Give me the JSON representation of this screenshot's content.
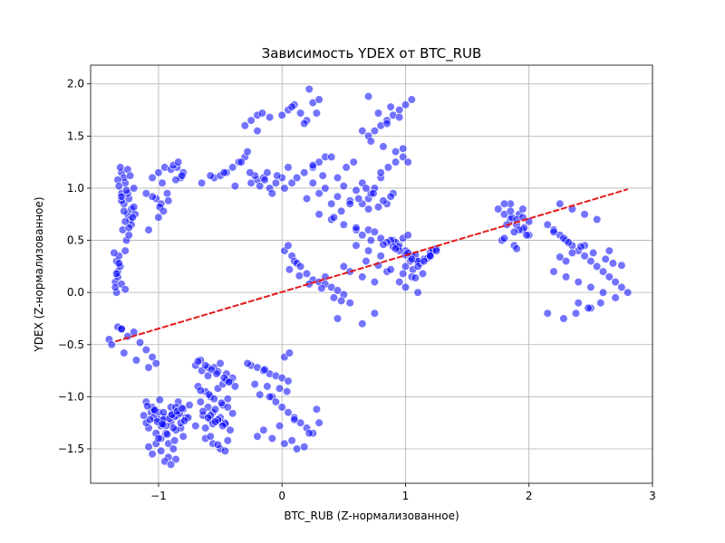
{
  "chart_data": {
    "type": "scatter",
    "title": "Зависимость YDEX от BTC_RUB",
    "xlabel": "BTC_RUB (Z-нормализованное)",
    "ylabel": "YDEX (Z-нормализованное)",
    "xlim": [
      -1.55,
      3.0
    ],
    "ylim": [
      -1.83,
      2.18
    ],
    "x_ticks": [
      -1,
      0,
      1,
      2,
      3
    ],
    "x_tick_labels": [
      "−1",
      "0",
      "1",
      "2",
      "3"
    ],
    "y_ticks": [
      -1.5,
      -1.0,
      -0.5,
      0.0,
      0.5,
      1.0,
      1.5,
      2.0
    ],
    "y_tick_labels": [
      "−1.5",
      "−1.0",
      "−0.5",
      "0.0",
      "0.5",
      "1.0",
      "1.5",
      "2.0"
    ],
    "grid": true,
    "colors": {
      "points": "#0000ff",
      "regression": "#e41a1c"
    },
    "regression_line": {
      "x": [
        -1.35,
        2.8
      ],
      "y": [
        -0.47,
        0.99
      ],
      "style": "dashed"
    },
    "series": [
      {
        "x": [
          -1.3,
          -1.28,
          -1.25,
          -1.3,
          -1.27,
          -1.24,
          -1.22,
          -1.29,
          -1.26,
          -1.23,
          -1.2,
          -1.31,
          -1.28,
          -1.25,
          -1.22,
          -1.19,
          -1.27,
          -1.24,
          -1.3,
          -1.26,
          -1.21,
          -1.33,
          -1.28,
          -1.24,
          -1.2,
          -1.25,
          -1.27,
          -1.3,
          -1.23,
          -1.32,
          -1.34,
          -1.33,
          -1.35,
          -1.32,
          -1.34,
          -1.31,
          -1.33,
          -1.35,
          -1.32,
          -1.34,
          -1.3,
          -1.27,
          -1.33,
          -1.3,
          -1.36,
          -1.05,
          -1.0,
          -0.95,
          -0.9,
          -1.02,
          -0.98,
          -0.93,
          -1.08,
          -1.05,
          -0.97,
          -0.85,
          -0.82,
          -0.8,
          -0.88,
          -0.84,
          -0.81,
          -0.86,
          -0.92,
          -0.99,
          -0.96,
          -1.1,
          -1.0,
          -0.65,
          -0.55,
          -0.5,
          -0.45,
          -0.4,
          -0.35,
          -0.3,
          -0.28,
          -0.25,
          -0.2,
          -0.15,
          -0.12,
          -0.1,
          -0.05,
          0.0,
          0.05,
          -0.22,
          -0.18,
          -0.08,
          -0.33,
          -0.38,
          -0.26,
          -0.14,
          -0.04,
          0.02,
          0.08,
          0.12,
          0.18,
          0.25,
          0.3,
          -0.47,
          -0.58,
          -0.3,
          -0.25,
          -0.2,
          -0.16,
          -0.1,
          0.0,
          0.05,
          0.1,
          0.15,
          0.2,
          0.25,
          0.3,
          -0.2,
          0.22,
          0.28,
          0.18,
          0.08,
          0.2,
          0.3,
          0.35,
          0.4,
          0.45,
          0.5,
          0.55,
          0.6,
          0.65,
          0.7,
          0.75,
          0.8,
          0.85,
          0.9,
          0.3,
          0.4,
          0.5,
          0.6,
          0.65,
          0.7,
          0.72,
          0.78,
          0.82,
          0.88,
          0.25,
          0.33,
          0.42,
          0.48,
          0.55,
          0.62,
          0.68,
          0.74,
          0.8,
          0.86,
          0.92,
          0.35,
          0.45,
          0.52,
          0.58,
          0.25,
          0.4,
          0.6,
          0.7,
          0.75,
          0.8,
          0.85,
          0.9,
          0.95,
          1.0,
          1.05,
          0.72,
          0.82,
          0.92,
          0.98,
          1.02,
          0.65,
          0.85,
          0.95,
          0.78,
          0.88,
          0.98,
          0.7,
          0.9,
          0.95,
          1.0,
          1.05,
          1.1,
          1.15,
          1.2,
          1.25,
          0.92,
          0.98,
          1.02,
          1.08,
          1.12,
          1.18,
          1.22,
          0.88,
          0.94,
          1.04,
          1.06,
          1.14,
          0.6,
          0.7,
          0.8,
          0.55,
          0.5,
          0.65,
          0.75,
          1.0,
          1.1,
          1.2,
          0.85,
          0.95,
          1.0,
          1.05,
          1.1,
          1.15,
          1.2,
          1.1,
          1.25,
          0.75,
          0.65,
          0.45,
          0.55,
          0.35,
          1.75,
          1.8,
          1.85,
          1.9,
          1.95,
          2.0,
          1.78,
          1.88,
          1.98,
          1.82,
          1.92,
          1.86,
          1.96,
          1.8,
          1.9,
          1.85,
          1.95,
          1.9,
          1.8,
          1.85,
          1.95,
          2.0,
          1.92,
          1.88,
          2.15,
          2.2,
          2.25,
          2.3,
          2.35,
          2.4,
          2.45,
          2.5,
          2.55,
          2.6,
          2.65,
          2.7,
          2.75,
          2.8,
          2.2,
          2.3,
          2.4,
          2.5,
          2.6,
          2.7,
          2.25,
          2.35,
          2.45,
          2.55,
          2.65,
          2.3,
          2.4,
          2.5,
          2.15,
          2.28,
          2.38,
          2.48,
          2.58,
          2.45,
          2.35,
          2.25,
          2.2,
          2.28,
          2.32,
          2.42,
          2.52,
          2.62,
          2.68,
          2.75,
          -1.1,
          -1.05,
          -1.0,
          -0.95,
          -0.9,
          -0.85,
          -0.8,
          -0.75,
          -1.08,
          -1.02,
          -0.98,
          -0.92,
          -0.88,
          -0.82,
          -0.78,
          -1.06,
          -1.0,
          -0.94,
          -0.86,
          -0.8,
          -1.1,
          -1.04,
          -0.96,
          -0.9,
          -0.84,
          -0.76,
          -1.02,
          -0.98,
          -0.92,
          -0.86,
          -1.08,
          -1.0,
          -0.94,
          -0.88,
          -0.82,
          -0.96,
          -0.9,
          -1.04,
          -0.86,
          -0.98,
          -1.12,
          -1.07,
          -1.01,
          -0.96,
          -0.91,
          -0.87,
          -0.83,
          -0.79,
          -1.03,
          -0.97,
          -0.89,
          -0.85,
          -0.81,
          -1.09,
          -0.99,
          -0.93,
          -0.87,
          -1.05,
          -0.95,
          -0.9,
          -0.7,
          -0.65,
          -0.6,
          -0.55,
          -0.5,
          -0.45,
          -0.4,
          -0.68,
          -0.62,
          -0.58,
          -0.52,
          -0.48,
          -0.42,
          -0.66,
          -0.6,
          -0.56,
          -0.5,
          -0.46,
          -0.64,
          -0.58,
          -0.54,
          -0.48,
          -0.44,
          -0.7,
          -0.62,
          -0.56,
          -0.5,
          -0.66,
          -0.6,
          -0.52,
          -0.45,
          -0.68,
          -0.62,
          -0.57,
          -0.53,
          -0.47,
          -0.43,
          -0.38,
          -0.66,
          -0.59,
          -0.55,
          -0.49,
          -0.44,
          -0.64,
          -0.58,
          -0.52,
          -0.46,
          -0.4,
          -0.6,
          -0.54,
          -0.48,
          -0.42,
          -0.62,
          -0.56,
          -0.5,
          -0.44,
          -0.58,
          -0.52,
          -0.46,
          -0.25,
          -0.2,
          -0.15,
          -0.1,
          -0.05,
          0.0,
          0.05,
          -0.22,
          -0.12,
          -0.02,
          0.04,
          -0.18,
          -0.08,
          0.02,
          -0.28,
          -0.14,
          0.06,
          -0.1,
          -0.05,
          0.0,
          0.05,
          0.1,
          0.15,
          0.2,
          0.25,
          -0.08,
          0.02,
          0.12,
          0.22,
          0.3,
          -0.15,
          -0.2,
          0.08,
          0.18,
          -0.02,
          0.1,
          0.28,
          -1.4,
          -1.3,
          -1.25,
          -1.2,
          -1.15,
          -1.1,
          -1.05,
          -1.02,
          -1.38,
          -1.28,
          -1.18,
          -1.08,
          0.02,
          0.05,
          0.08,
          0.1,
          0.12,
          0.15,
          0.2,
          0.25,
          0.3,
          0.35,
          0.4,
          0.45,
          0.5,
          0.06,
          0.14,
          0.22,
          0.32,
          0.42,
          0.48,
          0.65,
          0.7,
          0.75,
          0.8,
          0.85,
          0.9,
          0.95,
          1.0,
          1.05,
          0.72,
          0.82,
          0.92,
          1.02,
          0.68,
          0.78,
          0.88,
          0.98,
          1.08
        ],
        "y": [
          0.95,
          0.85,
          0.75,
          1.15,
          1.05,
          0.9,
          0.8,
          0.6,
          0.5,
          0.7,
          1.0,
          1.2,
          1.1,
          0.95,
          0.65,
          0.75,
          0.4,
          0.55,
          0.88,
          0.98,
          0.72,
          1.08,
          0.78,
          0.62,
          0.82,
          1.18,
          0.68,
          0.92,
          1.12,
          1.02,
          0.3,
          0.2,
          0.1,
          0.35,
          0.0,
          0.25,
          0.15,
          0.05,
          0.28,
          0.18,
          0.08,
          0.03,
          -0.33,
          -0.35,
          0.38,
          1.1,
          1.15,
          1.2,
          1.18,
          0.9,
          0.85,
          0.95,
          0.6,
          0.92,
          1.05,
          1.2,
          1.1,
          1.15,
          1.22,
          1.25,
          1.12,
          1.08,
          0.88,
          0.82,
          0.78,
          0.95,
          0.72,
          1.05,
          1.1,
          1.12,
          1.15,
          1.2,
          1.25,
          1.3,
          1.35,
          1.05,
          1.08,
          1.1,
          1.15,
          1.0,
          1.05,
          1.1,
          1.2,
          1.12,
          1.02,
          0.95,
          1.25,
          1.02,
          1.15,
          1.08,
          1.12,
          1.0,
          1.05,
          1.1,
          1.15,
          1.2,
          1.25,
          1.15,
          1.12,
          1.6,
          1.65,
          1.7,
          1.72,
          1.68,
          1.7,
          1.75,
          1.8,
          1.72,
          1.65,
          1.82,
          1.85,
          1.55,
          1.95,
          1.72,
          1.62,
          1.78,
          0.9,
          0.95,
          1.0,
          0.85,
          0.92,
          1.02,
          0.88,
          0.98,
          1.05,
          0.9,
          1.0,
          1.1,
          0.85,
          0.95,
          0.75,
          0.7,
          0.65,
          0.6,
          0.85,
          0.8,
          0.95,
          0.82,
          0.88,
          0.92,
          1.05,
          1.12,
          0.72,
          0.78,
          0.85,
          0.9,
          1.0,
          0.95,
          1.15,
          1.2,
          1.25,
          1.3,
          1.1,
          1.2,
          1.25,
          1.22,
          1.3,
          0.62,
          1.5,
          1.55,
          1.6,
          1.65,
          1.7,
          1.75,
          1.8,
          1.85,
          1.45,
          1.4,
          1.35,
          1.3,
          1.25,
          1.55,
          1.62,
          1.68,
          1.72,
          1.78,
          1.38,
          1.88,
          0.5,
          0.45,
          0.4,
          0.35,
          0.3,
          0.32,
          0.38,
          0.42,
          0.48,
          0.52,
          0.55,
          0.36,
          0.28,
          0.33,
          0.4,
          0.5,
          0.44,
          0.3,
          0.22,
          0.18,
          0.45,
          0.4,
          0.35,
          0.2,
          0.25,
          0.15,
          0.1,
          0.25,
          0.3,
          0.35,
          0.2,
          0.1,
          0.05,
          0.15,
          0.25,
          0.3,
          0.35,
          0.0,
          0.4,
          -0.2,
          -0.3,
          -0.25,
          -0.1,
          0.15,
          0.8,
          0.75,
          0.7,
          0.65,
          0.6,
          0.55,
          0.5,
          0.45,
          0.55,
          0.65,
          0.75,
          0.72,
          0.62,
          0.52,
          0.42,
          0.85,
          0.8,
          0.7,
          0.85,
          0.78,
          0.72,
          0.68,
          0.6,
          0.58,
          0.65,
          0.6,
          0.55,
          0.5,
          0.45,
          0.4,
          0.35,
          0.3,
          0.25,
          0.2,
          0.15,
          0.1,
          0.05,
          0.0,
          0.2,
          0.15,
          0.1,
          0.05,
          0.0,
          -0.05,
          0.85,
          0.8,
          0.75,
          0.7,
          0.4,
          0.3,
          -0.1,
          -0.15,
          -0.2,
          -0.25,
          -0.2,
          -0.15,
          -0.1,
          0.45,
          0.38,
          0.34,
          0.58,
          0.52,
          0.48,
          0.44,
          0.38,
          0.32,
          0.28,
          0.26,
          -1.05,
          -1.1,
          -1.15,
          -1.2,
          -1.25,
          -1.18,
          -1.12,
          -1.08,
          -1.3,
          -1.35,
          -1.4,
          -1.45,
          -1.5,
          -1.3,
          -1.2,
          -1.15,
          -1.22,
          -1.28,
          -1.32,
          -1.38,
          -1.25,
          -1.2,
          -1.15,
          -1.1,
          -1.05,
          -1.2,
          -1.45,
          -1.52,
          -1.58,
          -1.6,
          -1.48,
          -1.4,
          -1.35,
          -1.3,
          -1.25,
          -1.22,
          -1.18,
          -1.12,
          -1.1,
          -1.28,
          -1.18,
          -1.22,
          -1.24,
          -1.27,
          -1.21,
          -1.19,
          -1.16,
          -1.23,
          -1.13,
          -1.26,
          -1.17,
          -1.14,
          -1.11,
          -1.09,
          -1.03,
          -1.36,
          -1.42,
          -1.55,
          -1.62,
          -1.65,
          -0.7,
          -0.75,
          -0.8,
          -0.72,
          -0.68,
          -0.78,
          -0.82,
          -0.9,
          -0.95,
          -1.0,
          -0.92,
          -0.88,
          -0.85,
          -1.05,
          -1.1,
          -1.15,
          -1.2,
          -1.25,
          -1.18,
          -1.22,
          -1.12,
          -1.08,
          -1.02,
          -1.28,
          -1.3,
          -1.26,
          -1.24,
          -0.65,
          -0.72,
          -0.76,
          -0.84,
          -0.66,
          -0.7,
          -0.74,
          -0.78,
          -0.82,
          -0.86,
          -0.9,
          -0.94,
          -0.98,
          -1.02,
          -1.06,
          -1.1,
          -1.14,
          -1.18,
          -1.22,
          -1.26,
          -1.16,
          -1.2,
          -1.24,
          -1.28,
          -1.32,
          -1.4,
          -1.45,
          -1.5,
          -1.42,
          -1.38,
          -1.46,
          -1.52,
          -0.7,
          -0.72,
          -0.75,
          -0.78,
          -0.8,
          -0.82,
          -0.85,
          -0.88,
          -0.9,
          -0.92,
          -0.95,
          -0.98,
          -1.0,
          -0.62,
          -0.68,
          -0.74,
          -0.58,
          -1.0,
          -1.05,
          -1.1,
          -1.15,
          -1.2,
          -1.25,
          -1.3,
          -1.35,
          -1.4,
          -1.45,
          -1.5,
          -1.35,
          -1.25,
          -1.32,
          -1.38,
          -1.42,
          -1.48,
          -1.28,
          -1.22,
          -1.12,
          -0.45,
          -0.35,
          -0.42,
          -0.38,
          -0.48,
          -0.55,
          -0.62,
          -0.68,
          -0.5,
          -0.58,
          -0.65,
          -0.72,
          0.4,
          0.45,
          0.35,
          0.3,
          0.28,
          0.25,
          0.18,
          0.12,
          0.1,
          0.08,
          0.05,
          0.02,
          -0.02,
          0.22,
          0.16,
          0.08,
          0.04,
          -0.05,
          -0.08,
          0.55,
          0.6,
          0.58,
          0.52,
          0.48,
          0.44,
          0.4,
          0.36,
          0.32,
          0.5,
          0.46,
          0.42,
          0.38,
          0.3,
          0.26,
          0.22,
          0.18,
          0.14
        ]
      }
    ]
  }
}
